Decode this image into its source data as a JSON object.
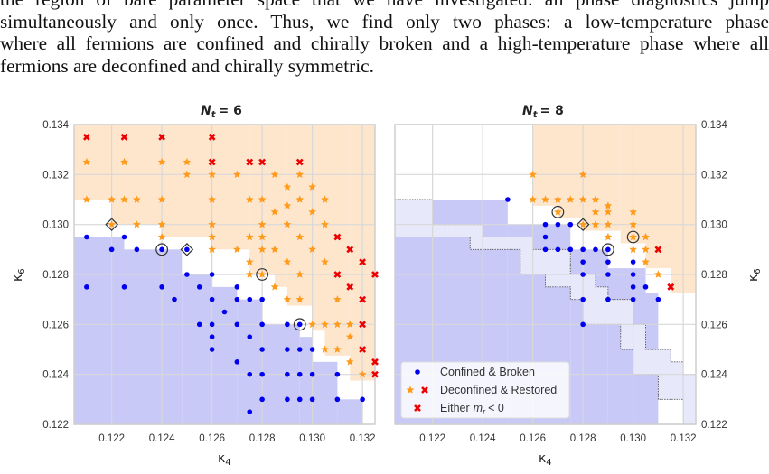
{
  "paragraph": {
    "lines": [
      "the region of bare parameter space that we have investigated: all phase diagnostics jump",
      "simultaneously and only once.  Thus, we find only two phases: a low-temperature phase",
      "where all fermions are confined and chirally broken and a high-temperature phase where all",
      "fermions are deconfined and chirally symmetric."
    ]
  },
  "colors": {
    "confined": "#0000ee",
    "deconfined": "#ff9a1a",
    "either": "#ee0000",
    "confined_region": "#c9c9f8",
    "deconfined_region": "#fee6cd",
    "uncertain_band": "#e8e8fb",
    "grid": "#d8d8d8"
  },
  "legend": {
    "confined": "Confined & Broken",
    "deconfined": "Deconfined & Restored",
    "either": {
      "prefix": "Either",
      "var": "m",
      "sub": "r",
      "suffix": "< 0"
    }
  },
  "chart_data": [
    {
      "type": "scatter",
      "title": {
        "var": "N",
        "sub": "t",
        "rest": "= 6"
      },
      "xlabel": {
        "sym": "κ",
        "sub": "4"
      },
      "ylabel": {
        "sym": "κ",
        "sub": "6"
      },
      "xlim": [
        0.1205,
        0.1325
      ],
      "ylim": [
        0.122,
        0.134
      ],
      "xticks": [
        "0.122",
        "0.124",
        "0.126",
        "0.128",
        "0.130",
        "0.132"
      ],
      "yticks": [
        "0.122",
        "0.124",
        "0.126",
        "0.128",
        "0.130",
        "0.132",
        "0.134"
      ],
      "grid": true,
      "confined_region_top": [
        [
          0.1205,
          0.1225,
          0.1295
        ],
        [
          0.1225,
          0.1248,
          0.129
        ],
        [
          0.1248,
          0.126,
          0.128
        ],
        [
          0.126,
          0.127,
          0.1275
        ],
        [
          0.127,
          0.128,
          0.127
        ],
        [
          0.128,
          0.1295,
          0.126
        ],
        [
          0.1295,
          0.13,
          0.1255
        ],
        [
          0.13,
          0.131,
          0.1245
        ],
        [
          0.131,
          0.132,
          0.123
        ]
      ],
      "deconfined_region_bottom": [
        [
          0.1205,
          0.122,
          0.131
        ],
        [
          0.122,
          0.124,
          0.13
        ],
        [
          0.124,
          0.126,
          0.1295
        ],
        [
          0.126,
          0.1275,
          0.129
        ],
        [
          0.1275,
          0.1285,
          0.128
        ],
        [
          0.1285,
          0.129,
          0.1275
        ],
        [
          0.129,
          0.13,
          0.12675
        ],
        [
          0.13,
          0.1305,
          0.12575
        ],
        [
          0.1305,
          0.1315,
          0.12475
        ],
        [
          0.1315,
          0.1325,
          0.12375
        ]
      ],
      "series": [
        {
          "name": "Confined & Broken",
          "marker": "dot",
          "points": [
            [
              0.121,
              0.1295
            ],
            [
              0.1225,
              0.1295
            ],
            [
              0.122,
              0.129
            ],
            [
              0.123,
              0.129
            ],
            [
              0.124,
              0.129
            ],
            [
              0.125,
              0.129
            ],
            [
              0.125,
              0.128
            ],
            [
              0.126,
              0.128
            ],
            [
              0.121,
              0.1275
            ],
            [
              0.1225,
              0.1275
            ],
            [
              0.124,
              0.1275
            ],
            [
              0.1255,
              0.1275
            ],
            [
              0.127,
              0.1275
            ],
            [
              0.1245,
              0.127
            ],
            [
              0.126,
              0.127
            ],
            [
              0.127,
              0.127
            ],
            [
              0.1275,
              0.127
            ],
            [
              0.128,
              0.127
            ],
            [
              0.1265,
              0.1265
            ],
            [
              0.1255,
              0.126
            ],
            [
              0.126,
              0.126
            ],
            [
              0.127,
              0.126
            ],
            [
              0.128,
              0.126
            ],
            [
              0.129,
              0.126
            ],
            [
              0.1295,
              0.126
            ],
            [
              0.126,
              0.1255
            ],
            [
              0.1275,
              0.1255
            ],
            [
              0.126,
              0.125
            ],
            [
              0.128,
              0.125
            ],
            [
              0.129,
              0.125
            ],
            [
              0.1295,
              0.125
            ],
            [
              0.13,
              0.125
            ],
            [
              0.127,
              0.1245
            ],
            [
              0.1275,
              0.124
            ],
            [
              0.128,
              0.124
            ],
            [
              0.129,
              0.124
            ],
            [
              0.1295,
              0.124
            ],
            [
              0.13,
              0.124
            ],
            [
              0.131,
              0.124
            ],
            [
              0.128,
              0.123
            ],
            [
              0.129,
              0.123
            ],
            [
              0.1295,
              0.123
            ],
            [
              0.13,
              0.123
            ],
            [
              0.131,
              0.123
            ],
            [
              0.132,
              0.123
            ],
            [
              0.1275,
              0.1225
            ]
          ]
        },
        {
          "name": "Deconfined & Restored",
          "marker": "star",
          "points": [
            [
              0.121,
              0.1325
            ],
            [
              0.1225,
              0.1325
            ],
            [
              0.124,
              0.1325
            ],
            [
              0.125,
              0.1325
            ],
            [
              0.125,
              0.132
            ],
            [
              0.126,
              0.132
            ],
            [
              0.127,
              0.132
            ],
            [
              0.1285,
              0.132
            ],
            [
              0.1295,
              0.132
            ],
            [
              0.129,
              0.1315
            ],
            [
              0.13,
              0.1315
            ],
            [
              0.121,
              0.131
            ],
            [
              0.122,
              0.131
            ],
            [
              0.1225,
              0.131
            ],
            [
              0.123,
              0.131
            ],
            [
              0.124,
              0.131
            ],
            [
              0.126,
              0.131
            ],
            [
              0.1275,
              0.131
            ],
            [
              0.128,
              0.131
            ],
            [
              0.1295,
              0.131
            ],
            [
              0.1305,
              0.131
            ],
            [
              0.129,
              0.13075
            ],
            [
              0.1285,
              0.1305
            ],
            [
              0.13,
              0.1305
            ],
            [
              0.122,
              0.13
            ],
            [
              0.123,
              0.13
            ],
            [
              0.124,
              0.13
            ],
            [
              0.126,
              0.13
            ],
            [
              0.128,
              0.13
            ],
            [
              0.129,
              0.13
            ],
            [
              0.1305,
              0.13
            ],
            [
              0.124,
              0.1295
            ],
            [
              0.126,
              0.1295
            ],
            [
              0.1275,
              0.1295
            ],
            [
              0.128,
              0.1295
            ],
            [
              0.1295,
              0.1295
            ],
            [
              0.126,
              0.129
            ],
            [
              0.127,
              0.129
            ],
            [
              0.128,
              0.129
            ],
            [
              0.1285,
              0.129
            ],
            [
              0.13,
              0.129
            ],
            [
              0.1275,
              0.1285
            ],
            [
              0.129,
              0.1285
            ],
            [
              0.1305,
              0.1285
            ],
            [
              0.1275,
              0.128
            ],
            [
              0.128,
              0.128
            ],
            [
              0.1295,
              0.128
            ],
            [
              0.1285,
              0.1275
            ],
            [
              0.129,
              0.127
            ],
            [
              0.1295,
              0.127
            ],
            [
              0.131,
              0.127
            ],
            [
              0.13,
              0.126
            ],
            [
              0.1305,
              0.126
            ],
            [
              0.131,
              0.126
            ],
            [
              0.1315,
              0.126
            ],
            [
              0.1315,
              0.1255
            ],
            [
              0.1305,
              0.125
            ],
            [
              0.131,
              0.125
            ],
            [
              0.1315,
              0.1245
            ],
            [
              0.132,
              0.124
            ]
          ]
        },
        {
          "name": "Either m_r < 0",
          "marker": "x",
          "points": [
            [
              0.121,
              0.1335
            ],
            [
              0.1225,
              0.1335
            ],
            [
              0.124,
              0.1335
            ],
            [
              0.126,
              0.1335
            ],
            [
              0.126,
              0.1325
            ],
            [
              0.1275,
              0.1325
            ],
            [
              0.128,
              0.1325
            ],
            [
              0.1295,
              0.1325
            ],
            [
              0.131,
              0.1295
            ],
            [
              0.1315,
              0.129
            ],
            [
              0.132,
              0.1285
            ],
            [
              0.131,
              0.128
            ],
            [
              0.1325,
              0.128
            ],
            [
              0.1315,
              0.1275
            ],
            [
              0.132,
              0.127
            ],
            [
              0.132,
              0.126
            ],
            [
              0.132,
              0.125
            ],
            [
              0.1325,
              0.1245
            ],
            [
              0.1325,
              0.124
            ]
          ]
        }
      ],
      "circled": [
        [
          0.124,
          0.129
        ],
        [
          0.128,
          0.128
        ],
        [
          0.1295,
          0.126
        ]
      ],
      "diamond": [
        [
          0.122,
          0.13
        ],
        [
          0.125,
          0.129
        ]
      ]
    },
    {
      "type": "scatter",
      "title": {
        "var": "N",
        "sub": "t",
        "rest": "= 8"
      },
      "xlabel": {
        "sym": "κ",
        "sub": "4"
      },
      "ylabel": {
        "sym": "κ",
        "sub": "6"
      },
      "xlim": [
        0.1205,
        0.1325
      ],
      "ylim": [
        0.122,
        0.134
      ],
      "xticks": [
        "0.122",
        "0.124",
        "0.126",
        "0.128",
        "0.130",
        "0.132"
      ],
      "yticks": [
        "0.122",
        "0.124",
        "0.126",
        "0.128",
        "0.130",
        "0.132",
        "0.134"
      ],
      "grid": true,
      "legend_position": "lower-left",
      "confined_region_top": [
        [
          0.1205,
          0.122,
          0.1295
        ],
        [
          0.122,
          0.125,
          0.131
        ],
        [
          0.125,
          0.1275,
          0.13
        ],
        [
          0.1275,
          0.129,
          0.129
        ],
        [
          0.129,
          0.1305,
          0.12825
        ],
        [
          0.1305,
          0.131,
          0.12725
        ]
      ],
      "deconfined_region_bottom": [
        [
          0.126,
          0.127,
          0.13075
        ],
        [
          0.127,
          0.128,
          0.13025
        ],
        [
          0.128,
          0.1295,
          0.12975
        ],
        [
          0.1295,
          0.1305,
          0.12925
        ],
        [
          0.1305,
          0.1315,
          0.12825
        ],
        [
          0.1315,
          0.1325,
          0.12725
        ]
      ],
      "band_upper": [
        [
          0.1205,
          0.122,
          0.131
        ],
        [
          0.122,
          0.124,
          0.13
        ],
        [
          0.124,
          0.126,
          0.1295
        ],
        [
          0.126,
          0.1275,
          0.129
        ],
        [
          0.1275,
          0.1285,
          0.128
        ],
        [
          0.1285,
          0.129,
          0.1275
        ],
        [
          0.129,
          0.13,
          0.127
        ],
        [
          0.13,
          0.1305,
          0.126
        ],
        [
          0.1305,
          0.1315,
          0.125
        ],
        [
          0.1315,
          0.132,
          0.1245
        ],
        [
          0.132,
          0.1325,
          0.124
        ]
      ],
      "band_lower": [
        [
          0.1205,
          0.1235,
          0.1295
        ],
        [
          0.1235,
          0.1255,
          0.129
        ],
        [
          0.1255,
          0.1265,
          0.128
        ],
        [
          0.1265,
          0.1275,
          0.1275
        ],
        [
          0.1275,
          0.128,
          0.127
        ],
        [
          0.128,
          0.1295,
          0.126
        ],
        [
          0.1295,
          0.13,
          0.125
        ],
        [
          0.13,
          0.131,
          0.124
        ],
        [
          0.131,
          0.132,
          0.123
        ],
        [
          0.132,
          0.1325,
          0.122
        ]
      ],
      "series": [
        {
          "name": "Confined & Broken",
          "marker": "dot",
          "points": [
            [
              0.125,
              0.131
            ],
            [
              0.1265,
              0.13
            ],
            [
              0.127,
              0.13
            ],
            [
              0.1275,
              0.13
            ],
            [
              0.1265,
              0.1295
            ],
            [
              0.1265,
              0.129
            ],
            [
              0.127,
              0.129
            ],
            [
              0.1275,
              0.129
            ],
            [
              0.128,
              0.129
            ],
            [
              0.1285,
              0.129
            ],
            [
              0.129,
              0.129
            ],
            [
              0.128,
              0.1285
            ],
            [
              0.129,
              0.1285
            ],
            [
              0.13,
              0.1285
            ],
            [
              0.128,
              0.128
            ],
            [
              0.129,
              0.128
            ],
            [
              0.13,
              0.128
            ],
            [
              0.13,
              0.1275
            ],
            [
              0.1305,
              0.1275
            ],
            [
              0.128,
              0.127
            ],
            [
              0.129,
              0.127
            ],
            [
              0.13,
              0.127
            ],
            [
              0.131,
              0.127
            ],
            [
              0.128,
              0.126
            ]
          ]
        },
        {
          "name": "Deconfined & Restored",
          "marker": "star",
          "points": [
            [
              0.126,
              0.132
            ],
            [
              0.128,
              0.132
            ],
            [
              0.126,
              0.131
            ],
            [
              0.1265,
              0.131
            ],
            [
              0.127,
              0.131
            ],
            [
              0.1275,
              0.131
            ],
            [
              0.128,
              0.131
            ],
            [
              0.1285,
              0.131
            ],
            [
              0.129,
              0.13075
            ],
            [
              0.127,
              0.1305
            ],
            [
              0.1285,
              0.1305
            ],
            [
              0.129,
              0.1305
            ],
            [
              0.13,
              0.1305
            ],
            [
              0.128,
              0.13
            ],
            [
              0.1285,
              0.13
            ],
            [
              0.129,
              0.13
            ],
            [
              0.13,
              0.13
            ],
            [
              0.129,
              0.1295
            ],
            [
              0.13,
              0.1295
            ],
            [
              0.1305,
              0.1295
            ],
            [
              0.13,
              0.129
            ],
            [
              0.1305,
              0.129
            ],
            [
              0.1305,
              0.1285
            ],
            [
              0.131,
              0.128
            ]
          ]
        },
        {
          "name": "Either m_r < 0",
          "marker": "x",
          "points": [
            [
              0.131,
              0.129
            ],
            [
              0.1315,
              0.1275
            ]
          ]
        }
      ],
      "circled": [
        [
          0.127,
          0.1305
        ],
        [
          0.13,
          0.1295
        ],
        [
          0.129,
          0.129
        ]
      ],
      "diamond": [
        [
          0.128,
          0.13
        ]
      ]
    }
  ]
}
